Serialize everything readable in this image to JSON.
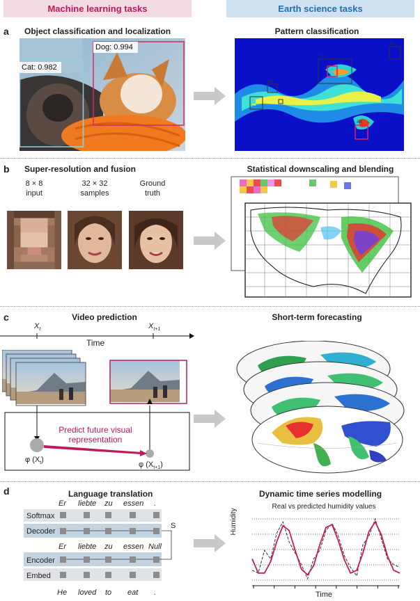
{
  "headers": {
    "left": "Machine learning tasks",
    "right": "Earth science tasks",
    "left_bg": "#f2dbe3",
    "left_color": "#c0185a",
    "right_bg": "#cfe0ee",
    "right_color": "#1f6eb4"
  },
  "panels": {
    "a": {
      "letter": "a",
      "left_title": "Object classification and localization",
      "right_title": "Pattern classification",
      "dog_label": "Dog: 0.994",
      "cat_label": "Cat: 0.982",
      "pattern_labels": [
        "TC",
        "TC",
        "AR",
        "AR"
      ]
    },
    "b": {
      "letter": "b",
      "left_title": "Super-resolution and fusion",
      "right_title": "Statistical downscaling and blending",
      "col1": [
        "8 × 8",
        "input"
      ],
      "col2": [
        "32 × 32",
        "samples"
      ],
      "col3": [
        "Ground",
        "truth"
      ]
    },
    "c": {
      "letter": "c",
      "left_title": "Video prediction",
      "right_title": "Short-term forecasting",
      "xt": "X",
      "xt_sub": "t",
      "xt1": "X",
      "xt1_sub": "t+1",
      "time": "Time",
      "predict_line1": "Predict future visual",
      "predict_line2": "representation",
      "phi_t": "φ (X",
      "phi_t_sub": "t",
      "phi_t1": "φ (X",
      "phi_t1_sub": "t+1"
    },
    "d": {
      "letter": "d",
      "left_title": "Language translation",
      "right_title": "Dynamic time series modelling",
      "output_words": [
        "Er",
        "liebte",
        "zu",
        "essen",
        "."
      ],
      "decoder_words": [
        "Er",
        "liebte",
        "zu",
        "essen",
        "Null"
      ],
      "input_words": [
        "He",
        "loved",
        "to",
        "eat",
        "."
      ],
      "rows": [
        "Softmax",
        "Decoder",
        "Encoder",
        "Embed"
      ],
      "s_label": "S",
      "chart_title": "Real vs predicted humidity values",
      "chart_ylabel": "Humidity",
      "chart_xlabel": "Time"
    }
  },
  "chart_data": {
    "type": "line",
    "title": "Real vs predicted humidity values",
    "xlabel": "Time",
    "ylabel": "Humidity",
    "grid": true,
    "series": [
      {
        "values": [
          0.3,
          0.05,
          0.05,
          0.25,
          0.6,
          0.88,
          0.8,
          0.45,
          0.12,
          0.02,
          0.18,
          0.55,
          0.85,
          0.9,
          0.62,
          0.28,
          0.05,
          0.1,
          0.4,
          0.78,
          0.95,
          0.72,
          0.35,
          0.1,
          0.05
        ]
      },
      {
        "values": [
          0.1,
          0.05,
          0.45,
          0.3,
          0.75,
          0.95,
          0.6,
          0.4,
          0.2,
          -0.05,
          0.3,
          0.45,
          0.8,
          0.92,
          0.7,
          0.35,
          0.15,
          0.0,
          0.55,
          0.7,
          1.0,
          0.65,
          0.3,
          0.2,
          0.15
        ]
      }
    ]
  },
  "colors": {
    "magenta": "#c0185a",
    "blue": "#1f6eb4",
    "grey_block": "#cfd9e2",
    "dark_block": "#b5c7d6"
  }
}
